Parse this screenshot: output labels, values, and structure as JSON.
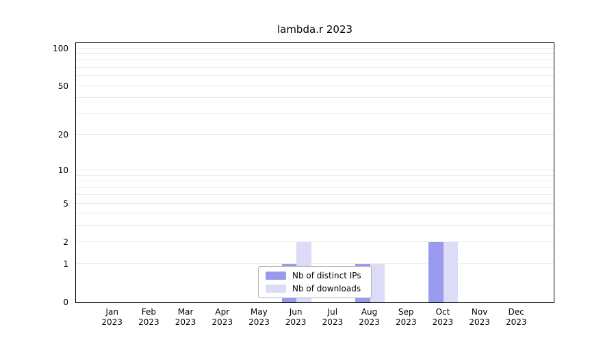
{
  "chart_data": {
    "type": "bar",
    "title": "lambda.r 2023",
    "categories": [
      "Jan 2023",
      "Feb 2023",
      "Mar 2023",
      "Apr 2023",
      "May 2023",
      "Jun 2023",
      "Jul 2023",
      "Aug 2023",
      "Sep 2023",
      "Oct 2023",
      "Nov 2023",
      "Dec 2023"
    ],
    "series": [
      {
        "name": "Nb of distinct IPs",
        "color": "#9999ee",
        "values": [
          0,
          0,
          0,
          0,
          0,
          1,
          0,
          1,
          0,
          2,
          0,
          0
        ]
      },
      {
        "name": "Nb of downloads",
        "color": "#dcdcf8",
        "values": [
          0,
          0,
          0,
          0,
          0,
          2,
          0,
          1,
          0,
          2,
          0,
          0
        ]
      }
    ],
    "xlabel": "",
    "ylabel": "",
    "yscale": "log1p",
    "ylim": [
      0,
      100
    ],
    "y_ticks": [
      0,
      1,
      2,
      5,
      10,
      20,
      50,
      100
    ],
    "gridline_values": [
      1,
      2,
      3,
      4,
      5,
      6,
      7,
      8,
      9,
      10,
      20,
      30,
      40,
      50,
      60,
      70,
      80,
      90,
      100
    ],
    "grid": true,
    "legend_position": "inside-bottom-center"
  },
  "colors": {
    "axis": "#000000",
    "gridline": "#eaeaea",
    "legend_border": "#b3b3b3",
    "background": "#ffffff"
  }
}
